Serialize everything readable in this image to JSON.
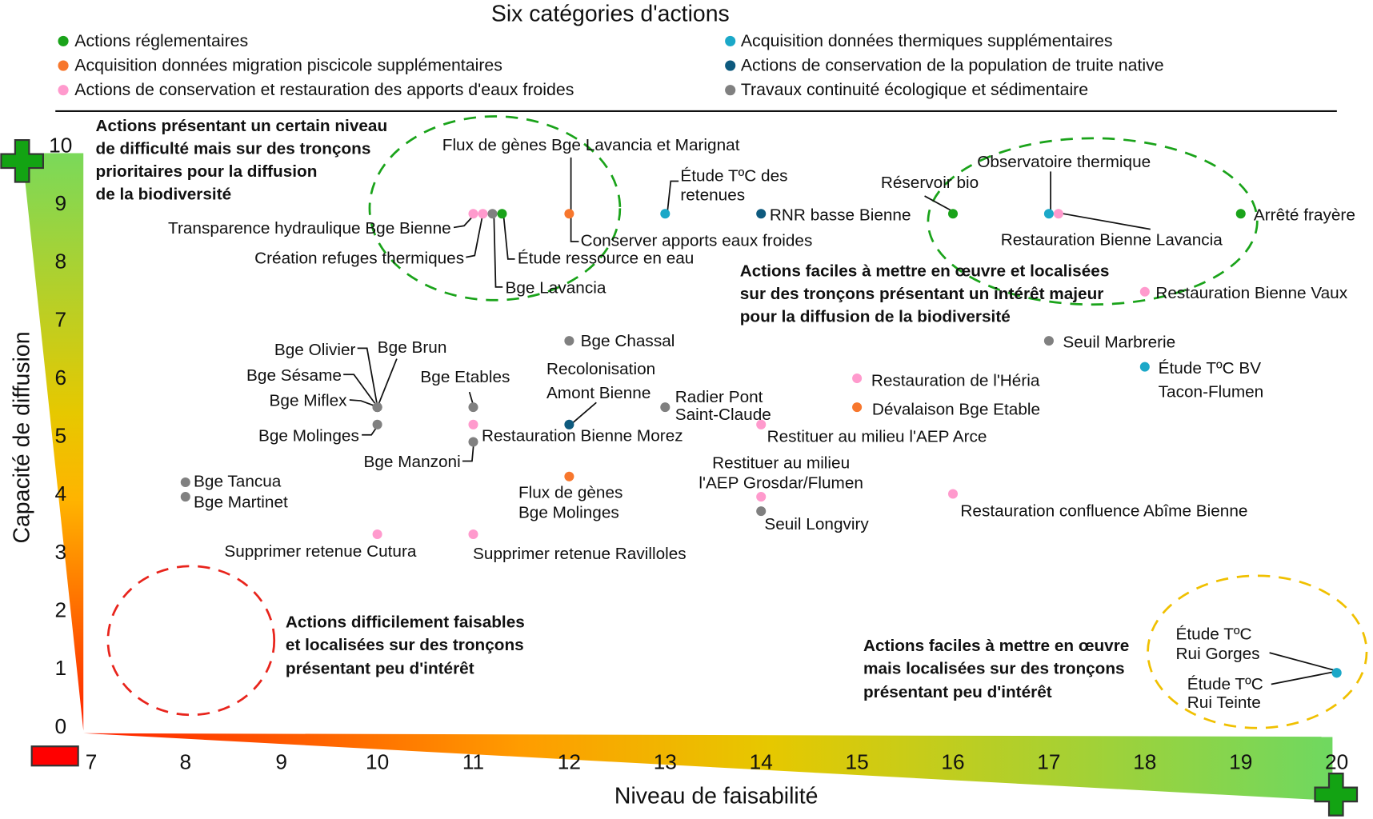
{
  "chart_data": {
    "type": "scatter",
    "title": "Six catégories d'actions",
    "xlabel": "Niveau de faisabilité",
    "ylabel": "Capacité de diffusion",
    "xlim": [
      7,
      20
    ],
    "ylim": [
      0,
      10
    ],
    "xticks": [
      "7",
      "8",
      "9",
      "10",
      "11",
      "12",
      "13",
      "14",
      "15",
      "16",
      "17",
      "18",
      "19",
      "20"
    ],
    "yticks": [
      "0",
      "1",
      "2",
      "3",
      "4",
      "5",
      "6",
      "7",
      "8",
      "9",
      "10"
    ],
    "grid": false,
    "legend_placement": "top",
    "categories": {
      "reglementaire": {
        "name": "Actions réglementaires",
        "color": "#1aa31a"
      },
      "migration": {
        "name": "Acquisition données migration piscicole supplémentaires",
        "color": "#f7772d"
      },
      "eaux_froides": {
        "name": "Actions de conservation et restauration des apports d'eaux froides",
        "color": "#ff9acd"
      },
      "thermique": {
        "name": "Acquisition données thermiques supplémentaires",
        "color": "#1ba8c8"
      },
      "truite": {
        "name": "Actions de conservation de la population de truite native",
        "color": "#0e5a7e"
      },
      "continuite": {
        "name": "Travaux continuité écologique et sédimentaire",
        "color": "#808080"
      }
    },
    "points": [
      {
        "x": 11.0,
        "y": 8.95,
        "category": "eaux_froides",
        "label": [
          "Transparence hydraulique Bge Bienne"
        ]
      },
      {
        "x": 11.1,
        "y": 8.95,
        "category": "eaux_froides",
        "label": [
          "Création refuges thermiques"
        ]
      },
      {
        "x": 11.2,
        "y": 8.95,
        "category": "continuite",
        "label": [
          "Bge Lavancia"
        ]
      },
      {
        "x": 11.3,
        "y": 8.95,
        "category": "reglementaire",
        "label": [
          "Étude ressource en eau"
        ]
      },
      {
        "x": 12.0,
        "y": 8.95,
        "category": "migration",
        "label": [
          "Flux de gènes Bge Lavancia et Marignat"
        ]
      },
      {
        "x": 13.0,
        "y": 8.95,
        "category": "thermique",
        "label": [
          "Étude TºC des",
          "retenues"
        ]
      },
      {
        "x": 14.0,
        "y": 8.95,
        "category": "truite",
        "label": [
          "RNR basse Bienne"
        ]
      },
      {
        "x": 16.0,
        "y": 8.95,
        "category": "reglementaire",
        "label": [
          "Réservoir bio"
        ]
      },
      {
        "x": 17.0,
        "y": 8.95,
        "category": "thermique",
        "label": [
          "Observatoire thermique"
        ]
      },
      {
        "x": 17.1,
        "y": 8.95,
        "category": "eaux_froides",
        "label": [
          "Restauration Bienne Lavancia"
        ]
      },
      {
        "x": 19.0,
        "y": 8.95,
        "category": "reglementaire",
        "label": [
          "Arrêté frayère"
        ]
      },
      {
        "x": 18.0,
        "y": 7.6,
        "category": "eaux_froides",
        "label": [
          "Restauration Bienne Vaux"
        ]
      },
      {
        "x": 12.0,
        "y": 6.75,
        "category": "continuite",
        "label": [
          "Bge Chassal"
        ]
      },
      {
        "x": 17.0,
        "y": 6.75,
        "category": "continuite",
        "label": [
          "Seuil Marbrerie"
        ]
      },
      {
        "x": 18.0,
        "y": 6.3,
        "category": "thermique",
        "label": [
          "Étude TºC BV",
          "Tacon-Flumen"
        ]
      },
      {
        "x": 15.0,
        "y": 6.1,
        "category": "eaux_froides",
        "label": [
          "Restauration de l'Héria"
        ]
      },
      {
        "x": 15.0,
        "y": 5.6,
        "category": "migration",
        "label": [
          "Dévalaison Bge Etable"
        ]
      },
      {
        "x": 10.0,
        "y": 5.6,
        "category": "continuite",
        "label": [
          "Bge Olivier"
        ]
      },
      {
        "x": 10.0,
        "y": 5.6,
        "category": "continuite",
        "label": [
          "Bge Sésame"
        ]
      },
      {
        "x": 10.0,
        "y": 5.6,
        "category": "continuite",
        "label": [
          "Bge Miflex"
        ]
      },
      {
        "x": 10.0,
        "y": 5.6,
        "category": "continuite",
        "label": [
          "Bge Brun"
        ]
      },
      {
        "x": 10.0,
        "y": 5.3,
        "category": "continuite",
        "label": [
          "Bge Molinges"
        ]
      },
      {
        "x": 11.0,
        "y": 5.6,
        "category": "continuite",
        "label": [
          "Bge Etables"
        ]
      },
      {
        "x": 11.0,
        "y": 5.3,
        "category": "eaux_froides",
        "label": [
          "Restauration Bienne Morez"
        ]
      },
      {
        "x": 12.0,
        "y": 5.3,
        "category": "truite",
        "label": [
          "Recolonisation",
          "Amont Bienne"
        ]
      },
      {
        "x": 11.0,
        "y": 5.0,
        "category": "continuite",
        "label": [
          "Bge Manzoni"
        ]
      },
      {
        "x": 13.0,
        "y": 5.6,
        "category": "continuite",
        "label": [
          "Radier Pont",
          "Saint-Claude"
        ]
      },
      {
        "x": 14.0,
        "y": 5.3,
        "category": "eaux_froides",
        "label": [
          "Restituer au milieu l'AEP Arce"
        ]
      },
      {
        "x": 12.0,
        "y": 4.4,
        "category": "migration",
        "label": [
          "Flux de gènes",
          "Bge Molinges"
        ]
      },
      {
        "x": 8.0,
        "y": 4.3,
        "category": "continuite",
        "label": [
          "Bge Tancua"
        ]
      },
      {
        "x": 8.0,
        "y": 4.05,
        "category": "continuite",
        "label": [
          "Bge Martinet"
        ]
      },
      {
        "x": 14.0,
        "y": 4.05,
        "category": "eaux_froides",
        "label": [
          "Restituer au milieu",
          "l'AEP Grosdar/Flumen"
        ]
      },
      {
        "x": 14.0,
        "y": 3.8,
        "category": "continuite",
        "label": [
          "Seuil Longviry"
        ]
      },
      {
        "x": 16.0,
        "y": 4.1,
        "category": "eaux_froides",
        "label": [
          "Restauration confluence Abîme Bienne"
        ]
      },
      {
        "x": 10.0,
        "y": 3.4,
        "category": "eaux_froides",
        "label": [
          "Supprimer retenue Cutura"
        ]
      },
      {
        "x": 11.0,
        "y": 3.4,
        "category": "eaux_froides",
        "label": [
          "Supprimer retenue Ravilloles"
        ]
      },
      {
        "x": 20.0,
        "y": 1.0,
        "category": "thermique",
        "label": [
          "Étude TºC",
          "Rui Gorges"
        ]
      },
      {
        "x": 20.0,
        "y": 1.0,
        "category": "thermique",
        "label": [
          "Étude TºC",
          "Rui Teinte"
        ]
      }
    ],
    "callouts": [
      "Conserver apports eaux froides"
    ],
    "zones": [
      {
        "color": "#1aa31a",
        "text": [
          "Actions présentant un certain niveau",
          "de difficulté mais sur des tronçons",
          "prioritaires pour la diffusion",
          "de la biodiversité"
        ]
      },
      {
        "color": "#1aa31a",
        "text": [
          "Actions faciles à mettre en œuvre et localisées",
          "sur des tronçons présentant un intérêt majeur",
          "pour la diffusion de la biodiversité"
        ]
      },
      {
        "color": "#e8241c",
        "text": [
          "Actions difficilement faisables",
          "et localisées sur des tronçons",
          "présentant peu d'intérêt"
        ]
      },
      {
        "color": "#f0c000",
        "text": [
          "Actions faciles à mettre en œuvre",
          "mais localisées sur des tronçons",
          "présentant peu d'intérêt"
        ]
      }
    ]
  }
}
